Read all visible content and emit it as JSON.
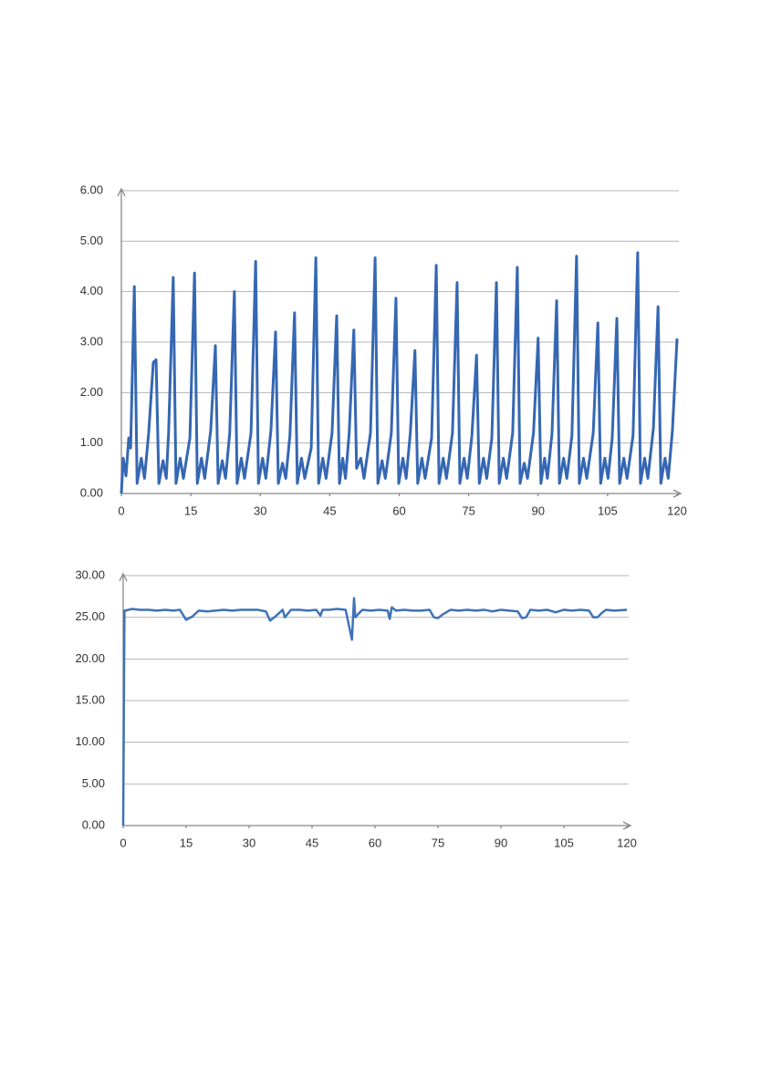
{
  "chart_data": [
    {
      "type": "line",
      "x": [
        0,
        0.4,
        1.0,
        1.6,
        2.0,
        2.8,
        3.4,
        4.3,
        5.0,
        5.9,
        6.9,
        7.5,
        8.1,
        9.0,
        9.7,
        10.2,
        11.2,
        11.8,
        12.7,
        13.4,
        14.8,
        15.8,
        16.4,
        17.3,
        18.0,
        19.3,
        20.3,
        20.9,
        21.8,
        22.5,
        23.4,
        24.4,
        25.0,
        25.9,
        26.6,
        28.0,
        29.0,
        29.6,
        30.5,
        31.2,
        32.3,
        33.3,
        33.9,
        34.8,
        35.5,
        36.4,
        37.4,
        38.0,
        38.9,
        39.6,
        41.0,
        42.0,
        42.6,
        43.5,
        44.2,
        45.5,
        46.5,
        47.1,
        47.8,
        48.4,
        49.2,
        50.2,
        50.8,
        51.7,
        52.4,
        53.8,
        54.8,
        55.4,
        56.3,
        57.0,
        58.3,
        59.3,
        59.9,
        60.8,
        61.5,
        62.4,
        63.4,
        64.0,
        64.9,
        65.6,
        67.0,
        68.0,
        68.6,
        69.5,
        70.2,
        71.5,
        72.5,
        73.1,
        74.0,
        74.7,
        75.7,
        76.7,
        77.3,
        78.2,
        78.9,
        80.0,
        81.0,
        81.6,
        82.5,
        83.2,
        84.5,
        85.5,
        86.1,
        87.0,
        87.7,
        89.0,
        90.0,
        90.6,
        91.4,
        92.0,
        93.0,
        94.0,
        94.6,
        95.5,
        96.2,
        97.3,
        98.3,
        98.9,
        99.8,
        100.5,
        101.9,
        102.9,
        103.5,
        104.4,
        105.1,
        106.0,
        107.0,
        107.6,
        108.5,
        109.2,
        110.5,
        111.5,
        112.1,
        113.0,
        113.7,
        114.9,
        115.9,
        116.5,
        117.4,
        118.1,
        119.0,
        120.0
      ],
      "series": [
        {
          "color": "#3567b3",
          "values": [
            0,
            0.7,
            0.35,
            1.1,
            0.9,
            4.1,
            0.2,
            0.7,
            0.3,
            1.2,
            2.6,
            2.65,
            0.2,
            0.65,
            0.3,
            1.2,
            4.28,
            0.2,
            0.7,
            0.3,
            1.1,
            4.37,
            0.2,
            0.7,
            0.3,
            1.25,
            2.93,
            0.2,
            0.65,
            0.3,
            1.2,
            4.0,
            0.2,
            0.7,
            0.3,
            1.2,
            4.6,
            0.2,
            0.7,
            0.3,
            1.25,
            3.2,
            0.2,
            0.6,
            0.3,
            1.15,
            3.58,
            0.2,
            0.7,
            0.3,
            0.9,
            4.67,
            0.2,
            0.7,
            0.3,
            1.2,
            3.52,
            0.2,
            0.7,
            0.3,
            1.2,
            3.24,
            0.5,
            0.7,
            0.3,
            1.2,
            4.67,
            0.2,
            0.65,
            0.3,
            1.2,
            3.87,
            0.2,
            0.7,
            0.3,
            1.2,
            2.83,
            0.2,
            0.7,
            0.3,
            1.1,
            4.52,
            0.2,
            0.7,
            0.3,
            1.2,
            4.18,
            0.2,
            0.7,
            0.3,
            1.15,
            2.74,
            0.2,
            0.7,
            0.3,
            1.1,
            4.18,
            0.2,
            0.7,
            0.3,
            1.2,
            4.48,
            0.2,
            0.6,
            0.3,
            1.2,
            3.08,
            0.2,
            0.7,
            0.3,
            1.2,
            3.82,
            0.2,
            0.7,
            0.3,
            1.15,
            4.7,
            0.2,
            0.7,
            0.3,
            1.2,
            3.38,
            0.2,
            0.7,
            0.3,
            1.1,
            3.47,
            0.2,
            0.7,
            0.3,
            1.15,
            4.77,
            0.2,
            0.7,
            0.3,
            1.3,
            3.7,
            0.2,
            0.7,
            0.3,
            1.25,
            3.07
          ]
        }
      ],
      "xlim": [
        0,
        120
      ],
      "xticks": [
        0,
        15,
        30,
        45,
        60,
        75,
        90,
        105,
        120
      ],
      "ylim": [
        0,
        6
      ],
      "yticks": [
        {
          "value": 0,
          "label": "0.00"
        },
        {
          "value": 1,
          "label": "1.00"
        },
        {
          "value": 2,
          "label": "2.00"
        },
        {
          "value": 3,
          "label": "3.00"
        },
        {
          "value": 4,
          "label": "4.00"
        },
        {
          "value": 5,
          "label": "5.00"
        },
        {
          "value": 6,
          "label": "6.00"
        }
      ],
      "grid": true
    },
    {
      "type": "line",
      "x": [
        0,
        0.3,
        0.6,
        2,
        4,
        6,
        8,
        10,
        12,
        13.5,
        15,
        16.5,
        18,
        20,
        22,
        24,
        26,
        28,
        30,
        32,
        34,
        35,
        36.5,
        38,
        38.5,
        40,
        42,
        44,
        46,
        47,
        47.5,
        49,
        51,
        53,
        54.5,
        55,
        55.3,
        56,
        57,
        59,
        61,
        63,
        63.5,
        64,
        65,
        67,
        69,
        71,
        73,
        74,
        75,
        76,
        78,
        80,
        82,
        84,
        86,
        88,
        90,
        92,
        94,
        95,
        96,
        97,
        99,
        101,
        103,
        105,
        107,
        109,
        111,
        112,
        113,
        114,
        115,
        117,
        120
      ],
      "series": [
        {
          "color": "#3f72b8",
          "values": [
            0,
            25.8,
            25.8,
            26.0,
            25.9,
            25.9,
            25.8,
            25.9,
            25.8,
            25.9,
            24.7,
            25.1,
            25.8,
            25.7,
            25.8,
            25.9,
            25.8,
            25.9,
            25.9,
            25.9,
            25.7,
            24.6,
            25.2,
            25.9,
            25.0,
            25.9,
            25.9,
            25.8,
            25.9,
            25.2,
            25.9,
            25.9,
            26.0,
            25.9,
            22.3,
            27.3,
            25.0,
            25.4,
            25.9,
            25.8,
            25.9,
            25.8,
            24.8,
            26.2,
            25.8,
            25.9,
            25.8,
            25.8,
            25.9,
            25.0,
            24.9,
            25.3,
            25.9,
            25.8,
            25.9,
            25.8,
            25.9,
            25.7,
            25.9,
            25.8,
            25.7,
            24.9,
            25.0,
            25.9,
            25.8,
            25.9,
            25.6,
            25.9,
            25.8,
            25.9,
            25.8,
            25.0,
            25.0,
            25.5,
            25.9,
            25.8,
            25.9
          ]
        }
      ],
      "xlim": [
        0,
        120
      ],
      "xticks": [
        0,
        15,
        30,
        45,
        60,
        75,
        90,
        105,
        120
      ],
      "ylim": [
        0,
        30
      ],
      "yticks": [
        {
          "value": 0,
          "label": "0.00"
        },
        {
          "value": 5,
          "label": "5.00"
        },
        {
          "value": 10,
          "label": "10.00"
        },
        {
          "value": 15,
          "label": "15.00"
        },
        {
          "value": 20,
          "label": "20.00"
        },
        {
          "value": 25,
          "label": "25.00"
        },
        {
          "value": 30,
          "label": "30.00"
        }
      ],
      "grid": true
    }
  ]
}
